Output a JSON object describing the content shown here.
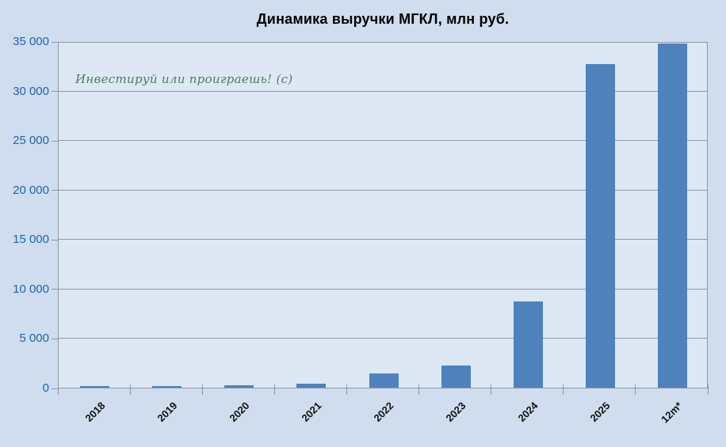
{
  "title": "Динамика выручки МГКЛ, млн руб.",
  "watermark": "Инвестируй или проиграешь! (с)",
  "colors": {
    "background": "#cfddee",
    "plot_background": "#dde8f4",
    "bar": "#4f81bd",
    "grid": "#8b99a9",
    "y_label": "#1f63ae",
    "x_label": "#111111",
    "title": "#000000",
    "watermark": "#4e7e5e"
  },
  "chart_data": {
    "type": "bar",
    "title": "Динамика выручки МГКЛ, млн руб.",
    "categories": [
      "2018",
      "2019",
      "2020",
      "2021",
      "2022",
      "2023",
      "2024",
      "2025",
      "12m*"
    ],
    "values": [
      130,
      180,
      250,
      440,
      1400,
      2200,
      8700,
      32700,
      34800
    ],
    "xlabel": "",
    "ylabel": "",
    "unit": "млн руб.",
    "ylim": [
      0,
      35000
    ],
    "ytick_step": 5000,
    "ytick_labels": [
      "0",
      "5 000",
      "10 000",
      "15 000",
      "20 000",
      "25 000",
      "30 000",
      "35 000"
    ],
    "grid": true,
    "legend": false,
    "annotation": "Инвестируй или проиграешь! (с)"
  }
}
